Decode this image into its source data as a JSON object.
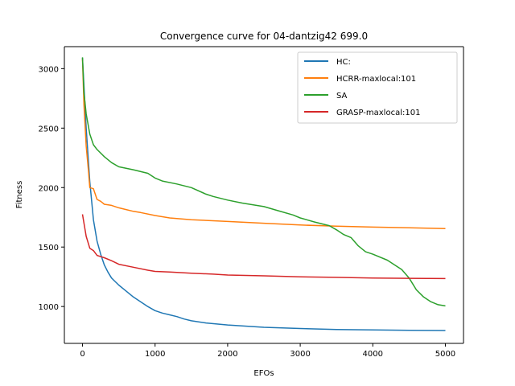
{
  "chart_data": {
    "type": "line",
    "title": "Convergence curve for 04-dantzig42 699.0",
    "xlabel": "EFOs",
    "ylabel": "Fitness",
    "xlim": [
      -250,
      5250
    ],
    "ylim": [
      690,
      3185
    ],
    "xticks": [
      0,
      1000,
      2000,
      3000,
      4000,
      5000
    ],
    "yticks": [
      1000,
      1500,
      2000,
      2500,
      3000
    ],
    "grid": false,
    "legend_position": "upper-right",
    "series": [
      {
        "name": "HC:",
        "color": "#1f77b4",
        "x": [
          0,
          50,
          100,
          150,
          200,
          250,
          300,
          350,
          400,
          450,
          500,
          600,
          700,
          800,
          900,
          1000,
          1100,
          1200,
          1300,
          1400,
          1500,
          1700,
          2000,
          2500,
          3000,
          3500,
          4000,
          4500,
          5000
        ],
        "y": [
          3090,
          2500,
          2050,
          1730,
          1550,
          1440,
          1350,
          1290,
          1240,
          1210,
          1180,
          1130,
          1080,
          1040,
          1000,
          965,
          945,
          930,
          915,
          895,
          880,
          862,
          845,
          825,
          815,
          807,
          803,
          800,
          798
        ]
      },
      {
        "name": "HCRR-maxlocal:101",
        "color": "#ff7f0e",
        "x": [
          0,
          20,
          50,
          80,
          100,
          150,
          200,
          250,
          300,
          400,
          500,
          600,
          700,
          800,
          1000,
          1200,
          1500,
          2000,
          2500,
          3000,
          3500,
          4000,
          4500,
          5000
        ],
        "y": [
          3080,
          2700,
          2350,
          2150,
          2000,
          1990,
          1900,
          1885,
          1860,
          1850,
          1830,
          1815,
          1800,
          1790,
          1765,
          1745,
          1730,
          1715,
          1700,
          1685,
          1675,
          1668,
          1662,
          1655
        ]
      },
      {
        "name": "SA",
        "color": "#2ca02c",
        "x": [
          0,
          20,
          50,
          100,
          150,
          200,
          300,
          400,
          500,
          700,
          900,
          1000,
          1100,
          1300,
          1500,
          1700,
          1800,
          2000,
          2200,
          2500,
          2700,
          2900,
          3000,
          3200,
          3400,
          3500,
          3600,
          3700,
          3800,
          3900,
          4000,
          4200,
          4400,
          4500,
          4600,
          4700,
          4800,
          4900,
          5000
        ],
        "y": [
          3095,
          2800,
          2620,
          2450,
          2360,
          2320,
          2260,
          2210,
          2175,
          2150,
          2120,
          2080,
          2055,
          2030,
          2000,
          1945,
          1925,
          1895,
          1870,
          1840,
          1805,
          1770,
          1745,
          1710,
          1680,
          1645,
          1605,
          1580,
          1510,
          1460,
          1440,
          1390,
          1310,
          1240,
          1140,
          1080,
          1040,
          1015,
          1005
        ]
      },
      {
        "name": "GRASP-maxlocal:101",
        "color": "#d62728",
        "x": [
          0,
          50,
          100,
          150,
          200,
          300,
          400,
          500,
          700,
          900,
          1000,
          1200,
          1500,
          1800,
          2000,
          2500,
          3000,
          3500,
          4000,
          4500,
          5000
        ],
        "y": [
          1775,
          1590,
          1490,
          1470,
          1430,
          1410,
          1385,
          1355,
          1330,
          1305,
          1295,
          1290,
          1280,
          1272,
          1265,
          1258,
          1250,
          1245,
          1240,
          1237,
          1235
        ]
      }
    ]
  }
}
